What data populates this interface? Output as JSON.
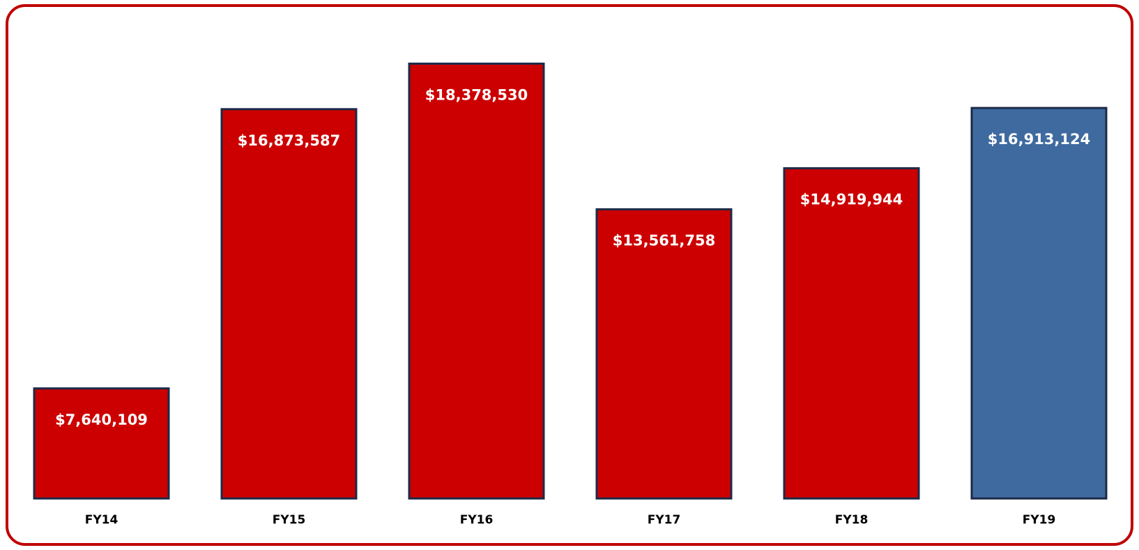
{
  "chart_data": {
    "type": "bar",
    "categories": [
      "FY14",
      "FY15",
      "FY16",
      "FY17",
      "FY18",
      "FY19"
    ],
    "values": [
      7640109,
      16873587,
      18378530,
      13561758,
      14919944,
      16913124
    ],
    "value_labels": [
      "$7,640,109",
      "$16,873,587",
      "$18,378,530",
      "$13,561,758",
      "$14,919,944",
      "$16,913,124"
    ],
    "colors": [
      "#cc0000",
      "#cc0000",
      "#cc0000",
      "#cc0000",
      "#cc0000",
      "#3e6a9f"
    ],
    "ylim": [
      4000000,
      20000000
    ]
  }
}
